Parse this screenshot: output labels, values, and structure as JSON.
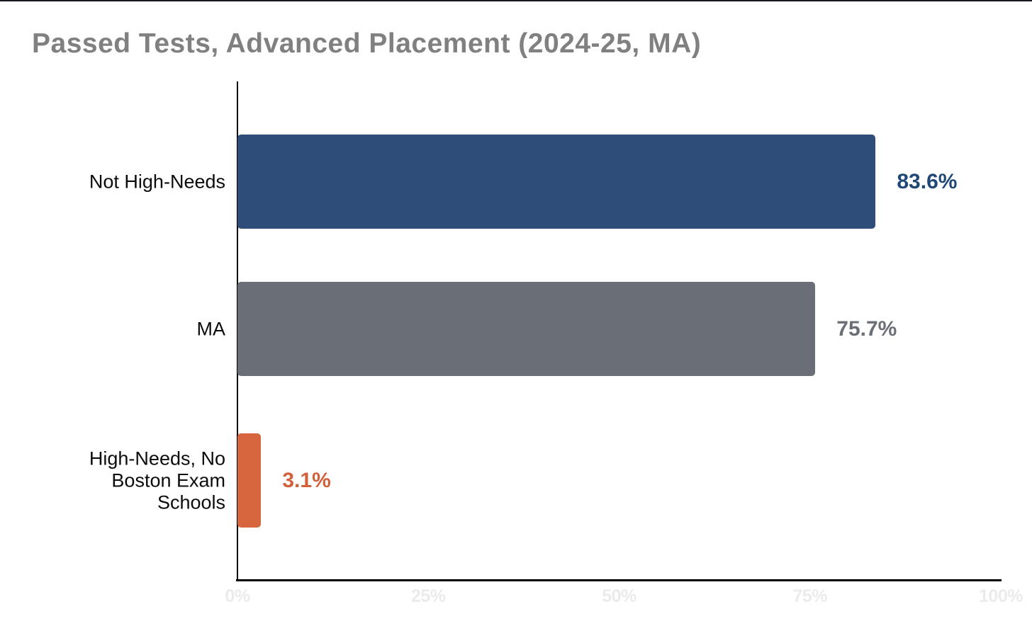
{
  "page": {
    "title": "Passed Tests, Advanced Placement (2024-25, MA)"
  },
  "chart_data": {
    "type": "bar",
    "orientation": "horizontal",
    "title": "Passed Tests, Advanced Placement (2024-25, MA)",
    "categories": [
      "Not High-Needs",
      "MA",
      "High-Needs, No Boston Exam Schools"
    ],
    "values": [
      83.6,
      75.7,
      3.1
    ],
    "value_labels": [
      "83.6%",
      "75.7%",
      "3.1%"
    ],
    "bar_colors": [
      "#2e4d78",
      "#6a6f77",
      "#d7663f"
    ],
    "value_label_colors": [
      "#1f4876",
      "#6a6f77",
      "#d2603a"
    ],
    "xlim": [
      0,
      100
    ],
    "x_tick_labels": [
      "0%",
      "25%",
      "50%",
      "75%",
      "100%"
    ],
    "x_tick_values": [
      0,
      25,
      50,
      75,
      100
    ],
    "xlabel": "",
    "ylabel": "",
    "grid": false,
    "legend": "none",
    "styles": {
      "title_color": "#808080",
      "category_label_color": "#0c0c0c",
      "tick_label_color": "#ebebeb",
      "axis_color": "#000000",
      "background": "#ffffff"
    }
  }
}
